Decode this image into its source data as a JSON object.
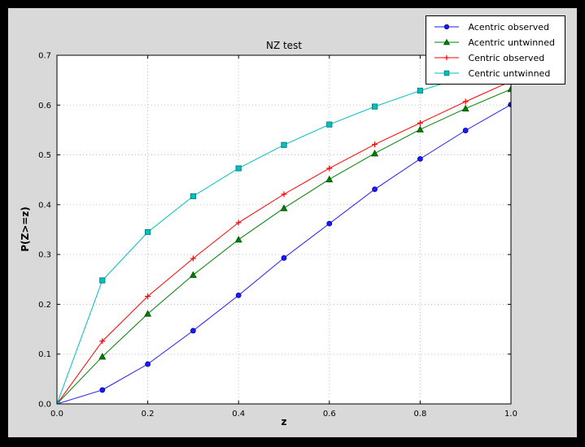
{
  "chart_data": {
    "type": "line",
    "title": "NZ test",
    "xlabel": "z",
    "ylabel": "P(Z>=z)",
    "xlim": [
      0.0,
      1.0
    ],
    "ylim": [
      0.0,
      0.7
    ],
    "xticks": [
      0.0,
      0.2,
      0.4,
      0.6,
      0.8,
      1.0
    ],
    "yticks": [
      0.0,
      0.1,
      0.2,
      0.3,
      0.4,
      0.5,
      0.6,
      0.7
    ],
    "grid": true,
    "legend_position": "upper right",
    "background_color": "#d9d9d9",
    "axes_color": "#ffffff",
    "x": [
      0.0,
      0.1,
      0.2,
      0.3,
      0.4,
      0.5,
      0.6,
      0.7,
      0.8,
      0.9,
      1.0
    ],
    "series": [
      {
        "name": "Acentric observed",
        "color": "#1a1aff",
        "edge": "#000099",
        "marker": "circle",
        "values": [
          0.0,
          0.028,
          0.08,
          0.147,
          0.218,
          0.293,
          0.362,
          0.431,
          0.492,
          0.549,
          0.601
        ]
      },
      {
        "name": "Acentric untwinned",
        "color": "#008000",
        "edge": "#004d00",
        "marker": "triangle",
        "values": [
          0.0,
          0.095,
          0.181,
          0.259,
          0.33,
          0.393,
          0.451,
          0.503,
          0.551,
          0.593,
          0.632
        ]
      },
      {
        "name": "Centric observed",
        "color": "#ff0000",
        "edge": "#990000",
        "marker": "plus",
        "values": [
          0.0,
          0.126,
          0.216,
          0.292,
          0.364,
          0.421,
          0.473,
          0.521,
          0.564,
          0.607,
          0.648
        ]
      },
      {
        "name": "Centric untwinned",
        "color": "#00bfbf",
        "edge": "#007a7a",
        "marker": "square",
        "values": [
          0.0,
          0.248,
          0.345,
          0.417,
          0.473,
          0.52,
          0.561,
          0.597,
          0.629,
          0.657,
          0.683
        ]
      }
    ]
  }
}
